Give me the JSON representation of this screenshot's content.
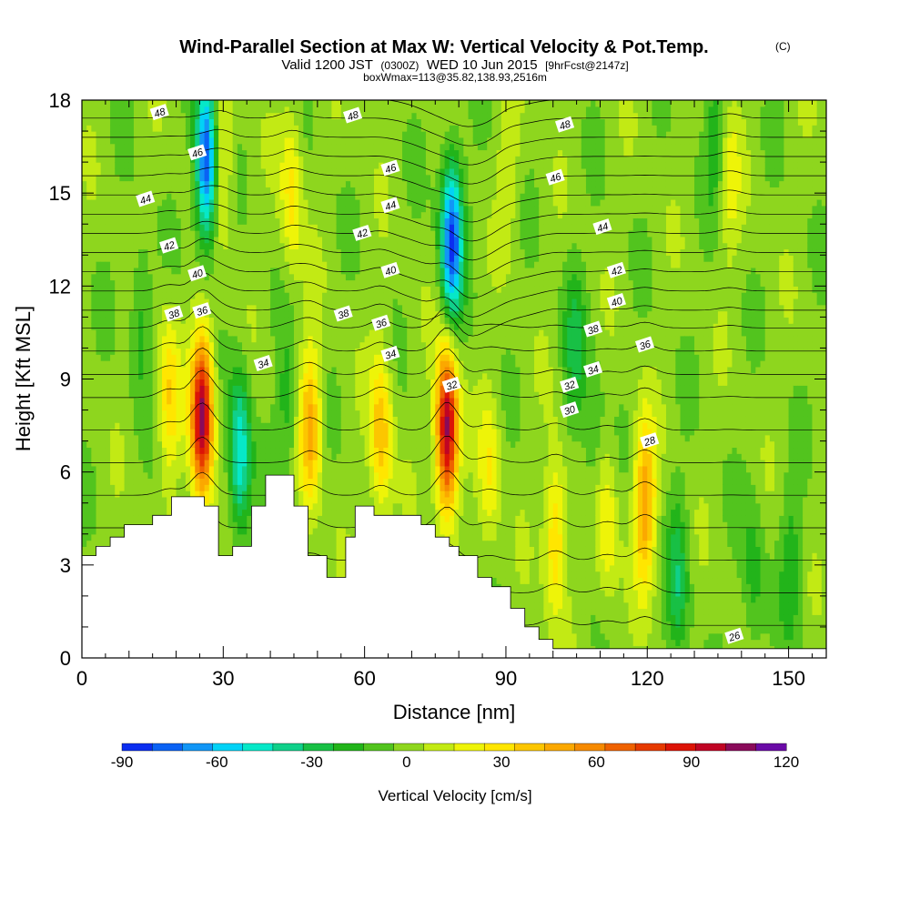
{
  "title": "Wind-Parallel Section at Max W: Vertical Velocity & Pot.Temp.",
  "copyright": "(C)",
  "subtitle_main": "Valid 1200 JST",
  "subtitle_small1": "(0300Z)",
  "subtitle_mid": "WED 10 Jun 2015",
  "subtitle_small2": "[9hrFcst@2147z]",
  "subtitle2": "boxWmax=113@35.82,138.93,2516m",
  "chart_data": {
    "type": "heatmap",
    "xlabel": "Distance [nm]",
    "ylabel": "Height [Kft MSL]",
    "xlim": [
      0,
      158
    ],
    "ylim": [
      0,
      18
    ],
    "x_ticks": [
      "0",
      "30",
      "60",
      "90",
      "120",
      "150"
    ],
    "y_ticks": [
      "0",
      "3",
      "6",
      "9",
      "12",
      "15",
      "18"
    ],
    "colorbar": {
      "title": "Vertical Velocity [cm/s]",
      "tick_labels": [
        "-90",
        "-60",
        "-30",
        "0",
        "30",
        "60",
        "90",
        "120"
      ],
      "min": -90,
      "max": 120,
      "step": 10,
      "colors": [
        "#0b2ef0",
        "#0a62f4",
        "#1196f6",
        "#02d2f6",
        "#06e8c8",
        "#10d08a",
        "#18c045",
        "#22b41a",
        "#52c41e",
        "#8ed61e",
        "#c2ea14",
        "#eef408",
        "#ffe600",
        "#fcc600",
        "#fba800",
        "#f68a00",
        "#ef6200",
        "#e63a00",
        "#dc1406",
        "#c00424",
        "#8a0a5a",
        "#6a0aa6"
      ]
    },
    "terrain_profile": {
      "x": [
        0,
        3,
        3,
        6,
        6,
        9,
        9,
        15,
        15,
        19,
        19,
        26,
        26,
        29,
        29,
        32,
        32,
        36,
        36,
        39,
        39,
        45,
        45,
        48,
        48,
        52,
        52,
        56,
        56,
        58,
        58,
        62,
        62,
        72,
        72,
        75,
        75,
        78,
        78,
        80,
        80,
        84,
        84,
        87,
        87,
        91,
        91,
        94,
        94,
        97,
        97,
        100,
        100,
        104,
        104,
        158
      ],
      "y": [
        3.3,
        3.3,
        3.6,
        3.6,
        3.9,
        3.9,
        4.3,
        4.3,
        4.6,
        4.6,
        5.2,
        5.2,
        4.9,
        4.9,
        3.3,
        3.3,
        3.6,
        3.6,
        4.9,
        4.9,
        5.9,
        5.9,
        4.9,
        4.9,
        3.3,
        3.3,
        2.6,
        2.6,
        3.9,
        3.9,
        4.9,
        4.9,
        4.6,
        4.6,
        4.3,
        4.3,
        3.9,
        3.9,
        3.6,
        3.6,
        3.3,
        3.3,
        2.6,
        2.6,
        2.3,
        2.3,
        1.6,
        1.6,
        1.0,
        1.0,
        0.6,
        0.6,
        0.3,
        0.3,
        0.3,
        0.3
      ]
    },
    "updraft_cores": [
      {
        "x": 25.5,
        "y": 7.8,
        "w": 110
      },
      {
        "x": 77.5,
        "y": 7.4,
        "w": 113
      },
      {
        "x": 48.5,
        "y": 7.5,
        "w": 50
      },
      {
        "x": 63.5,
        "y": 7.2,
        "w": 45
      },
      {
        "x": 18.5,
        "y": 8.5,
        "w": 35
      },
      {
        "x": 100.5,
        "y": 4.0,
        "w": 40
      },
      {
        "x": 119.5,
        "y": 5.0,
        "w": 55
      },
      {
        "x": 111.5,
        "y": 4.2,
        "w": 25
      },
      {
        "x": 86.5,
        "y": 6.0,
        "w": 25
      },
      {
        "x": 29.5,
        "y": 16.0,
        "w": 30
      },
      {
        "x": 44.5,
        "y": 15.0,
        "w": 30
      },
      {
        "x": 137.5,
        "y": 15.5,
        "w": 20
      },
      {
        "x": 90.5,
        "y": 16.0,
        "w": 15
      }
    ],
    "downdraft_cores": [
      {
        "x": 26.5,
        "y": 16.0,
        "w": -90
      },
      {
        "x": 78.5,
        "y": 13.5,
        "w": -85
      },
      {
        "x": 33.5,
        "y": 6.6,
        "w": -55
      },
      {
        "x": 43.5,
        "y": 8.0,
        "w": -20
      },
      {
        "x": 12.5,
        "y": 11.0,
        "w": -20
      },
      {
        "x": 104.5,
        "y": 10.0,
        "w": -25
      },
      {
        "x": 126.5,
        "y": 2.5,
        "w": -30
      },
      {
        "x": 142.5,
        "y": 2.5,
        "w": -20
      },
      {
        "x": 150.5,
        "y": 3.0,
        "w": -20
      },
      {
        "x": 134.5,
        "y": 17.0,
        "w": -20
      },
      {
        "x": 108.5,
        "y": 7.0,
        "w": -15
      }
    ],
    "theta_contours": {
      "start": 25,
      "end": 48,
      "step": 1,
      "labels": [
        {
          "text": "48",
          "x": 16.5,
          "y": 17.6
        },
        {
          "text": "48",
          "x": 57.5,
          "y": 17.5
        },
        {
          "text": "48",
          "x": 102.5,
          "y": 17.2
        },
        {
          "text": "46",
          "x": 24.5,
          "y": 16.3
        },
        {
          "text": "46",
          "x": 65.5,
          "y": 15.8
        },
        {
          "text": "46",
          "x": 100.5,
          "y": 15.5
        },
        {
          "text": "44",
          "x": 13.5,
          "y": 14.8
        },
        {
          "text": "44",
          "x": 65.5,
          "y": 14.6
        },
        {
          "text": "44",
          "x": 110.5,
          "y": 13.9
        },
        {
          "text": "42",
          "x": 18.5,
          "y": 13.3
        },
        {
          "text": "42",
          "x": 59.5,
          "y": 13.7
        },
        {
          "text": "42",
          "x": 113.5,
          "y": 12.5
        },
        {
          "text": "40",
          "x": 24.5,
          "y": 12.4
        },
        {
          "text": "40",
          "x": 65.5,
          "y": 12.5
        },
        {
          "text": "40",
          "x": 113.5,
          "y": 11.5
        },
        {
          "text": "38",
          "x": 19.5,
          "y": 11.1
        },
        {
          "text": "38",
          "x": 55.5,
          "y": 11.1
        },
        {
          "text": "38",
          "x": 108.5,
          "y": 10.6
        },
        {
          "text": "36",
          "x": 25.5,
          "y": 11.2
        },
        {
          "text": "36",
          "x": 63.5,
          "y": 10.8
        },
        {
          "text": "36",
          "x": 119.5,
          "y": 10.1
        },
        {
          "text": "34",
          "x": 38.5,
          "y": 9.5
        },
        {
          "text": "34",
          "x": 65.5,
          "y": 9.8
        },
        {
          "text": "34",
          "x": 108.5,
          "y": 9.3
        },
        {
          "text": "32",
          "x": 78.5,
          "y": 8.8
        },
        {
          "text": "32",
          "x": 103.5,
          "y": 8.8
        },
        {
          "text": "30",
          "x": 103.5,
          "y": 8.0
        },
        {
          "text": "28",
          "x": 120.5,
          "y": 7.0
        },
        {
          "text": "26",
          "x": 138.5,
          "y": 0.7
        }
      ]
    }
  }
}
